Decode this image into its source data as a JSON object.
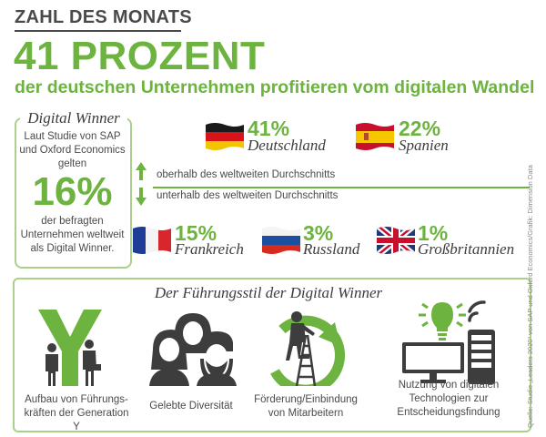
{
  "header": {
    "kicker": "ZAHL DES MONATS",
    "headline": "41 PROZENT",
    "subline": "der deutschen Unternehmen profitieren vom digitalen Wandel"
  },
  "winner": {
    "title": "Digital Winner",
    "line1": "Laut Studie von SAP",
    "line2": "und Oxford Economics",
    "line3": "gelten",
    "percent": "16%",
    "line4": "der befragten",
    "line5": "Unternehmen weltweit",
    "line6": "als Digital Winner."
  },
  "countries_above": [
    {
      "percent": "41%",
      "name": "Deutschland",
      "flag": "flag-germany"
    },
    {
      "percent": "22%",
      "name": "Spanien",
      "flag": "flag-spain"
    }
  ],
  "legend": {
    "above": "oberhalb des weltweiten Durchschnitts",
    "below": "unterhalb des weltweiten Durchschnitts"
  },
  "countries_below": [
    {
      "percent": "15%",
      "name": "Frankreich",
      "flag": "flag-france"
    },
    {
      "percent": "3%",
      "name": "Russland",
      "flag": "flag-russia"
    },
    {
      "percent": "1%",
      "name": "Großbritannien",
      "flag": "flag-uk"
    }
  ],
  "leadership": {
    "title": "Der Führungsstil der Digital Winner",
    "items": [
      {
        "line1": "Aufbau von Führungs-",
        "line2": "kräften der Generation Y",
        "icon": "generation-y-icon"
      },
      {
        "line1": "Gelebte Diversität",
        "icon": "diversity-icon"
      },
      {
        "line1": "Förderung/Einbindung",
        "line2": "von Mitarbeitern",
        "icon": "ladder-growth-icon"
      },
      {
        "line1": "Nutzung von digitalen",
        "line2": "Technologien zur",
        "line3": "Entscheidungsfindung",
        "icon": "technology-icon"
      }
    ]
  },
  "source": "Quelle: Studie „Leaders 2020“ von SAP und Oxford Economics/Grafik: Dimension Data",
  "colors": {
    "accent": "#6db33f",
    "border": "#aad08a",
    "text": "#3c3c3c"
  }
}
